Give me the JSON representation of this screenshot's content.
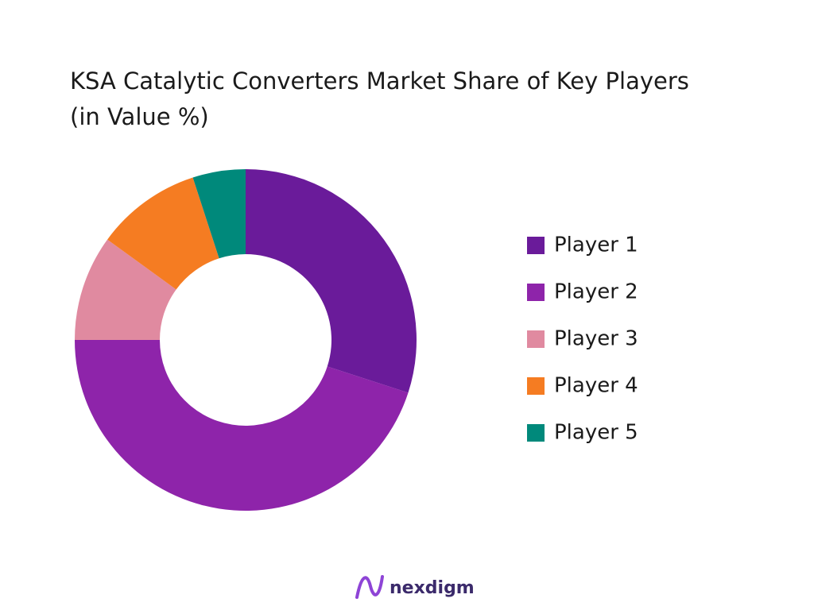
{
  "chart_data": {
    "type": "pie",
    "title": "KSA Catalytic Converters Market Share of Key Players (in Value %)",
    "categories": [
      "Player 1",
      "Player 2",
      "Player 3",
      "Player 4",
      "Player 5"
    ],
    "values": [
      30,
      45,
      10,
      10,
      5
    ],
    "colors": [
      "#6a1b9a",
      "#8e24aa",
      "#e08aa0",
      "#f57c22",
      "#00897b"
    ],
    "legend": "right"
  },
  "footer": {
    "logo": "nexdigm"
  }
}
